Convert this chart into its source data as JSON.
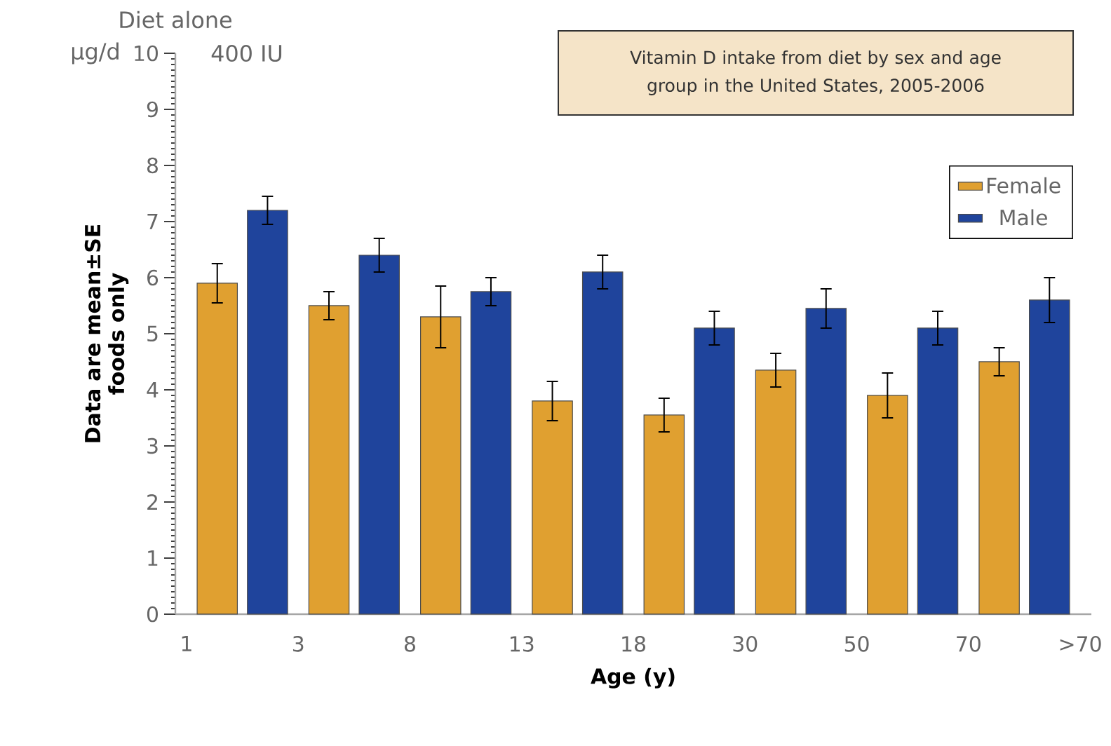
{
  "chart_data": {
    "type": "bar",
    "title": "Vitamin D intake from diet by sex and age group in the United States, 2005-2006",
    "xlabel": "Age (y)",
    "ylabel": "Data are mean±SE foods only",
    "annotations": [
      "Diet alone",
      "µg/d",
      "400 IU",
      "1",
      "3",
      "8",
      "13",
      "18",
      "30",
      "50",
      "70",
      ">70"
    ],
    "categories": [
      null,
      null,
      null,
      null,
      null,
      null,
      null,
      null
    ],
    "ylim": [
      0,
      10
    ],
    "yticks": [
      0,
      1,
      2,
      3,
      4,
      5,
      6,
      7,
      8,
      9,
      10
    ],
    "series": [
      {
        "name": "Female",
        "color": "#e0a030",
        "values": [
          5.9,
          5.5,
          5.3,
          3.8,
          3.55,
          4.35,
          3.9,
          4.5
        ],
        "errors": [
          0.35,
          0.25,
          0.55,
          0.35,
          0.3,
          0.3,
          0.4,
          0.25
        ]
      },
      {
        "name": "Male",
        "color": "#1f449c",
        "values": [
          7.2,
          6.4,
          5.75,
          6.1,
          5.1,
          5.45,
          5.1,
          5.6
        ],
        "errors": [
          0.25,
          0.3,
          0.25,
          0.3,
          0.3,
          0.35,
          0.3,
          0.4
        ]
      }
    ],
    "legend": "top right"
  }
}
